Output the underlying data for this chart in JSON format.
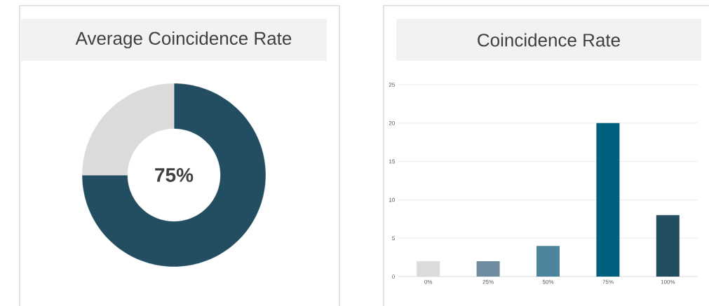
{
  "chart_data": [
    {
      "type": "donut",
      "title": "Average Coincidence Rate",
      "categories": [
        null,
        null
      ],
      "values": [
        75,
        25
      ],
      "colors": [
        "#234d60",
        "#dcdbda"
      ],
      "annotations": [
        "75%"
      ]
    },
    {
      "type": "bar",
      "title": "Coincidence Rate",
      "categories": [
        "0%",
        "25%",
        "50%",
        "75%",
        "100%"
      ],
      "values": [
        2,
        2,
        4,
        20,
        8
      ],
      "colors": [
        "#dcdbda",
        "#6f8ba0",
        "#4d849e",
        "#02607f",
        "#234d60"
      ],
      "ylim": [
        0,
        25
      ],
      "yticks": [
        0,
        5,
        10,
        15,
        20,
        25
      ],
      "grid": "y"
    }
  ]
}
